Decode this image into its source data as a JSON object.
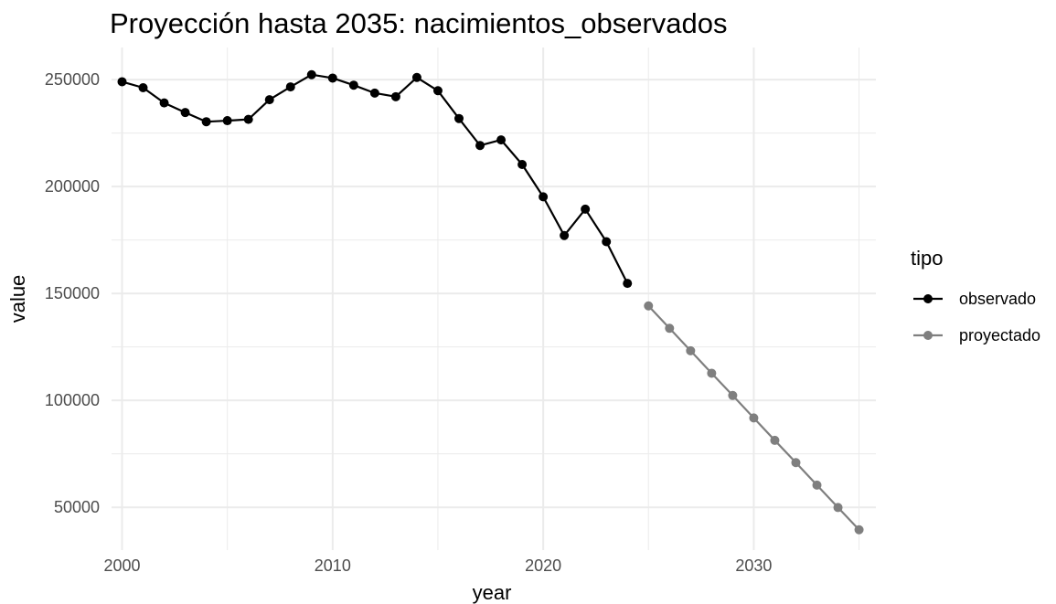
{
  "chart_data": {
    "type": "line",
    "title": "Proyección hasta 2035: nacimientos_observados",
    "xlabel": "year",
    "ylabel": "value",
    "xlim": [
      1999.5,
      2035.8
    ],
    "ylim": [
      30000,
      265000
    ],
    "x_ticks": [
      2000,
      2010,
      2020,
      2030
    ],
    "y_ticks": [
      50000,
      100000,
      150000,
      200000,
      250000
    ],
    "x_tick_labels": [
      "2000",
      "2010",
      "2020",
      "2030"
    ],
    "y_tick_labels": [
      "50000",
      "100000",
      "150000",
      "200000",
      "250000"
    ],
    "grid": true,
    "legend": {
      "title": "tipo",
      "position": "right"
    },
    "series": [
      {
        "name": "observado",
        "color": "#000000",
        "x": [
          2000,
          2001,
          2002,
          2003,
          2004,
          2005,
          2006,
          2007,
          2008,
          2009,
          2010,
          2011,
          2012,
          2013,
          2014,
          2015,
          2016,
          2017,
          2018,
          2019,
          2020,
          2021,
          2022,
          2023,
          2024
        ],
        "values": [
          249000,
          246200,
          239100,
          234600,
          230300,
          230800,
          231400,
          240600,
          246600,
          252300,
          250700,
          247400,
          243700,
          242000,
          251000,
          244800,
          231800,
          219200,
          221800,
          210300,
          195200,
          177100,
          189400,
          174200,
          154700
        ]
      },
      {
        "name": "proyectado",
        "color": "#7f7f7f",
        "x": [
          2025,
          2026,
          2027,
          2028,
          2029,
          2030,
          2031,
          2032,
          2033,
          2034,
          2035
        ],
        "values": [
          144200,
          133700,
          123200,
          112700,
          102300,
          91800,
          81300,
          70900,
          60400,
          49900,
          39500
        ]
      }
    ]
  }
}
